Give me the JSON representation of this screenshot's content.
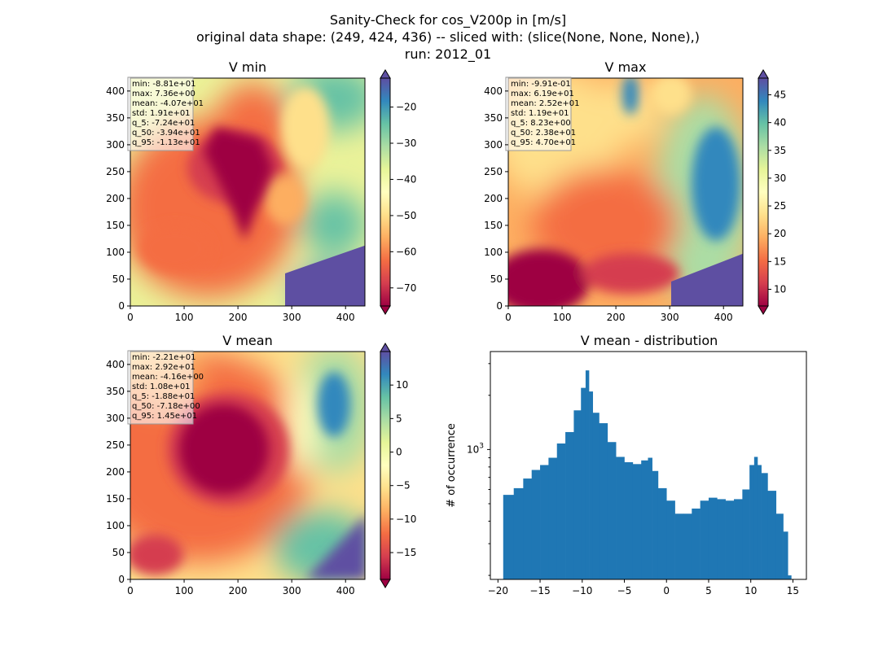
{
  "title_lines": [
    "Sanity-Check for cos_V200p in [m/s]",
    "original data shape: (249, 424, 436) -- sliced with: (slice(None, None, None),)",
    "run: 2012_01"
  ],
  "colormap": [
    "#9e0142",
    "#d53e4f",
    "#f46d43",
    "#fdae61",
    "#fee08b",
    "#ffffbf",
    "#e6f598",
    "#abdda4",
    "#66c2a5",
    "#3288bd",
    "#5e4fa2"
  ],
  "bar_color": "#1f77b4",
  "chart_data": [
    {
      "type": "heatmap",
      "title": "V min",
      "x_ticks": [
        0,
        100,
        200,
        300,
        400
      ],
      "y_ticks": [
        0,
        50,
        100,
        150,
        200,
        250,
        300,
        350,
        400
      ],
      "xlim": [
        0,
        436
      ],
      "ylim": [
        0,
        424
      ],
      "colorbar": {
        "vmin": -75,
        "vmax": -12,
        "ticks": [
          -70,
          -60,
          -50,
          -40,
          -30,
          -20
        ],
        "extend": "both"
      },
      "stats": [
        "min: -8.81e+01",
        "max: 7.36e+00",
        "mean: -4.07e+01",
        "std: 1.91e+01",
        "q_5: -7.24e+01",
        "q_50: -3.94e+01",
        "q_95: -1.13e+01"
      ]
    },
    {
      "type": "heatmap",
      "title": "V max",
      "x_ticks": [
        0,
        100,
        200,
        300,
        400
      ],
      "y_ticks": [
        0,
        50,
        100,
        150,
        200,
        250,
        300,
        350,
        400
      ],
      "xlim": [
        0,
        436
      ],
      "ylim": [
        0,
        424
      ],
      "colorbar": {
        "vmin": 7,
        "vmax": 48,
        "ticks": [
          10,
          15,
          20,
          25,
          30,
          35,
          40,
          45
        ],
        "extend": "both"
      },
      "stats": [
        "min: -9.91e-01",
        "max: 6.19e+01",
        "mean: 2.52e+01",
        "std: 1.19e+01",
        "q_5: 8.23e+00",
        "q_50: 2.38e+01",
        "q_95: 4.70e+01"
      ]
    },
    {
      "type": "heatmap",
      "title": "V mean",
      "x_ticks": [
        0,
        100,
        200,
        300,
        400
      ],
      "y_ticks": [
        0,
        50,
        100,
        150,
        200,
        250,
        300,
        350,
        400
      ],
      "xlim": [
        0,
        436
      ],
      "ylim": [
        0,
        424
      ],
      "colorbar": {
        "vmin": -19,
        "vmax": 15,
        "ticks": [
          -15,
          -10,
          -5,
          0,
          5,
          10
        ],
        "extend": "both"
      },
      "stats": [
        "min: -2.21e+01",
        "max: 2.92e+01",
        "mean: -4.16e+00",
        "std: 1.08e+01",
        "q_5: -1.88e+01",
        "q_50: -7.18e+00",
        "q_95: 1.45e+01"
      ]
    },
    {
      "type": "bar",
      "title": "V mean - distribution",
      "ylabel": "# of occurrence",
      "yscale": "log",
      "x_ticks": [
        -20,
        -15,
        -10,
        -5,
        0,
        5,
        10,
        15
      ],
      "x_tick_labels": [
        "−20",
        "−15",
        "−10",
        "−5",
        "0",
        "5",
        "10",
        "15"
      ],
      "y_tick_label": "10^3",
      "y_tick_value": 1000,
      "xlim": [
        -20.9,
        16.6
      ],
      "ylim": [
        190,
        3500
      ],
      "x": [
        -18.75,
        -17.5,
        -16.5,
        -15.5,
        -14.5,
        -13.5,
        -12.5,
        -11.5,
        -10.5,
        -9.8,
        -9.4,
        -9.0,
        -8.5,
        -7.5,
        -6.5,
        -5.5,
        -4.5,
        -3.5,
        -2.5,
        -1.9,
        -1.5,
        -0.5,
        0.5,
        1.5,
        2.5,
        3.5,
        4.5,
        5.5,
        6.5,
        7.5,
        8.5,
        9.5,
        10.2,
        10.6,
        11.0,
        11.5,
        12.5,
        13.5,
        14.2,
        14.6
      ],
      "values": [
        560,
        610,
        690,
        770,
        820,
        900,
        1080,
        1250,
        1650,
        2200,
        2750,
        2100,
        1600,
        1400,
        1100,
        910,
        850,
        830,
        870,
        900,
        760,
        610,
        520,
        440,
        440,
        470,
        520,
        540,
        530,
        520,
        530,
        600,
        820,
        910,
        820,
        740,
        590,
        440,
        350,
        200
      ]
    }
  ]
}
